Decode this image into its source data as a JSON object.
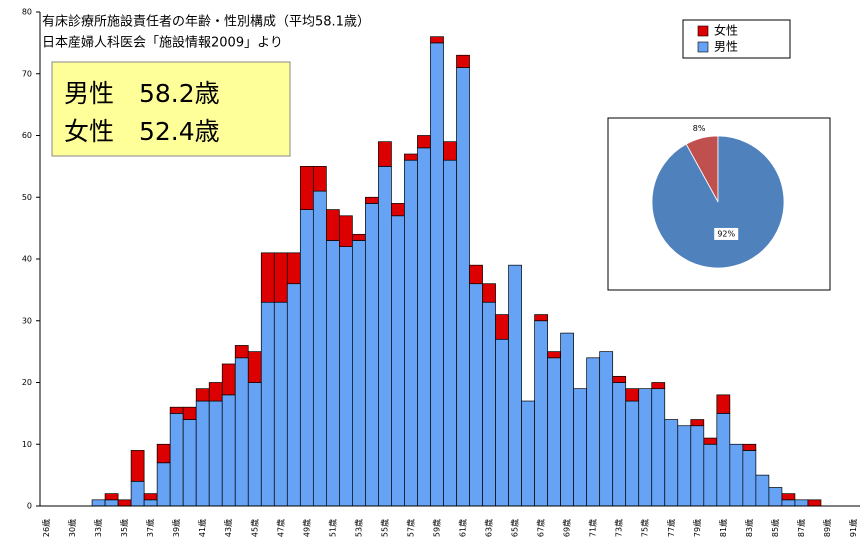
{
  "chart_data": [
    {
      "type": "stacked_bar",
      "title": "有床診療所施設責任者の年齢・性別構成（平均58.1歳）",
      "subtitle": "日本産婦人科医会「施設情報2009」より",
      "annotations": [
        "男性　58.2歳",
        "女性　52.4歳"
      ],
      "categories": [
        "26歳",
        null,
        "30歳",
        null,
        "33歳",
        null,
        "35歳",
        null,
        "37歳",
        null,
        "39歳",
        null,
        "41歳",
        null,
        "43歳",
        null,
        "45歳",
        null,
        "47歳",
        null,
        "49歳",
        null,
        "51歳",
        null,
        "53歳",
        null,
        "55歳",
        null,
        "57歳",
        null,
        "59歳",
        null,
        "61歳",
        null,
        "63歳",
        null,
        "65歳",
        null,
        "67歳",
        null,
        "69歳",
        null,
        "71歳",
        null,
        "73歳",
        null,
        "75歳",
        null,
        "77歳",
        null,
        "79歳",
        null,
        "81歳",
        null,
        "83歳",
        null,
        "85歳",
        null,
        "87歳",
        null,
        "89歳",
        null,
        "91歳"
      ],
      "series": [
        {
          "name": "男性",
          "color": "#66a3f5",
          "values": [
            0,
            0,
            0,
            0,
            1,
            1,
            0,
            4,
            1,
            7,
            15,
            14,
            17,
            17,
            18,
            24,
            20,
            33,
            33,
            36,
            48,
            51,
            43,
            42,
            43,
            49,
            55,
            47,
            56,
            58,
            75,
            56,
            71,
            36,
            33,
            27,
            39,
            17,
            30,
            24,
            28,
            19,
            24,
            25,
            20,
            17,
            19,
            19,
            14,
            13,
            13,
            10,
            15,
            10,
            9,
            5,
            3,
            1,
            1,
            0,
            0,
            0,
            0
          ]
        },
        {
          "name": "女性",
          "color": "#dd0000",
          "values": [
            0,
            0,
            0,
            0,
            0,
            1,
            1,
            5,
            1,
            3,
            1,
            2,
            2,
            3,
            5,
            2,
            5,
            8,
            8,
            5,
            7,
            4,
            5,
            5,
            1,
            1,
            4,
            2,
            1,
            2,
            1,
            3,
            2,
            3,
            3,
            4,
            0,
            0,
            1,
            1,
            0,
            0,
            0,
            0,
            1,
            2,
            0,
            1,
            0,
            0,
            1,
            1,
            3,
            0,
            1,
            0,
            0,
            1,
            0,
            1,
            0,
            0,
            0
          ]
        }
      ],
      "ylim": [
        0,
        80
      ],
      "yticks": [
        0,
        10,
        20,
        30,
        40,
        50,
        60,
        70,
        80
      ],
      "legend": "top-right"
    },
    {
      "type": "pie",
      "values": [
        8,
        92
      ],
      "value_labels": [
        "8%",
        "92%"
      ],
      "colors": [
        "#c0504d",
        "#4f81bd"
      ]
    }
  ]
}
